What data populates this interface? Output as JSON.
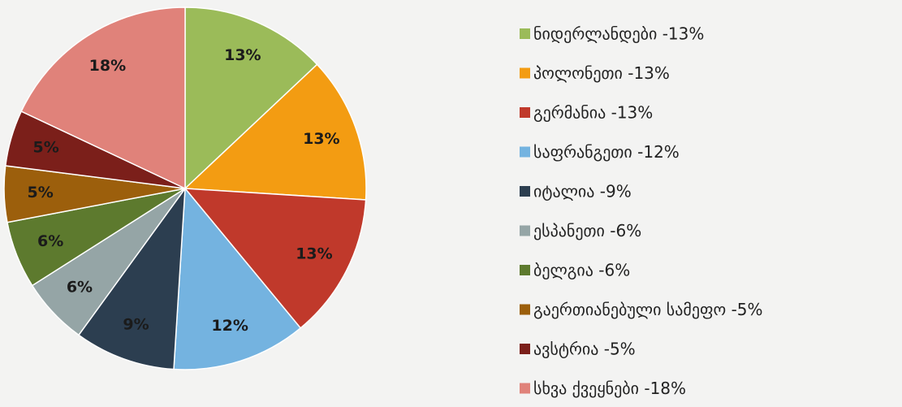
{
  "chart_data": {
    "type": "pie",
    "categories": [
      "ნიდერლანდები -13%",
      "პოლონეთი -13%",
      "გერმანია -13%",
      "საფრანგეთი -12%",
      "იტალია -9%",
      "ესპანეთი -6%",
      "ბელგია -6%",
      "გაერთიანებული სამეფო -5%",
      "ავსტრია -5%",
      "სხვა ქვეყნები -18%"
    ],
    "values": [
      13,
      13,
      13,
      12,
      9,
      6,
      6,
      5,
      5,
      18
    ],
    "value_labels": [
      "13%",
      "13%",
      "13%",
      "12%",
      "9%",
      "6%",
      "6%",
      "5%",
      "5%",
      "18%"
    ],
    "colors": [
      "#9bbb59",
      "#f39c12",
      "#c0392b",
      "#74b3e0",
      "#2c3e50",
      "#95a5a6",
      "#5d7a2e",
      "#9c5f0c",
      "#7b1f1a",
      "#e0827a"
    ],
    "legend": "right"
  }
}
